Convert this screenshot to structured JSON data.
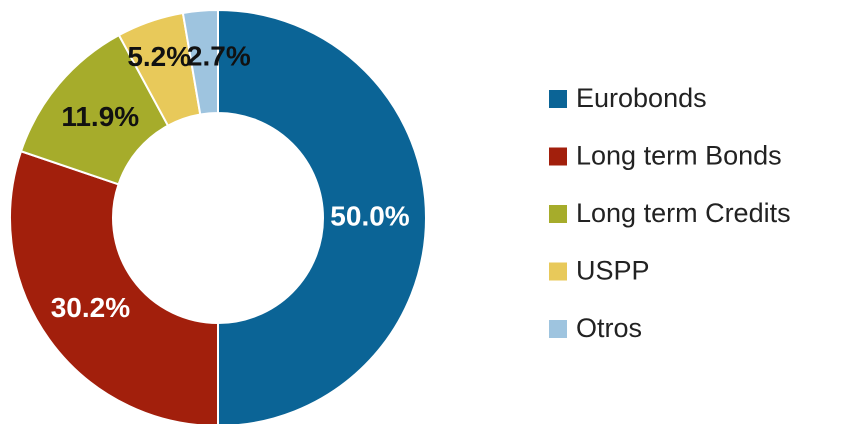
{
  "chart_data": {
    "type": "donut",
    "categories": [
      "Eurobonds",
      "Long term Bonds",
      "Long term Credits",
      "USPP",
      "Otros"
    ],
    "values": [
      50.0,
      30.2,
      11.9,
      5.2,
      2.7
    ],
    "value_labels": [
      "50.0%",
      "30.2%",
      "11.9%",
      "5.2%",
      "2.7%"
    ],
    "colors": [
      "#0b6496",
      "#a21f0c",
      "#a6ac2b",
      "#e8c95a",
      "#9ec4df"
    ],
    "legend": "right"
  }
}
